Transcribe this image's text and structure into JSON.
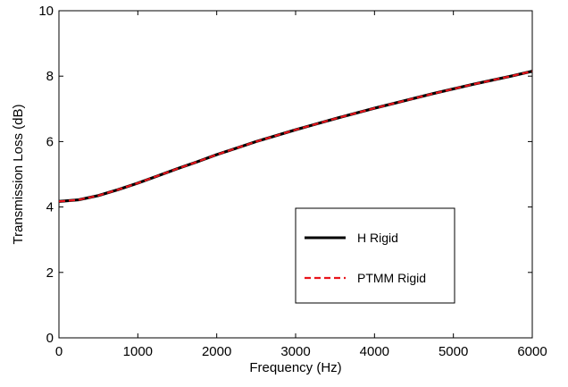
{
  "chart_data": {
    "type": "line",
    "title": "",
    "xlabel": "Frequency (Hz)",
    "ylabel": "Transmission Loss (dB)",
    "xlim": [
      0,
      6000
    ],
    "ylim": [
      0,
      10
    ],
    "xticks": [
      0,
      1000,
      2000,
      3000,
      4000,
      5000,
      6000
    ],
    "yticks": [
      0,
      2,
      4,
      6,
      8,
      10
    ],
    "xtick_labels": [
      "0",
      "1000",
      "2000",
      "3000",
      "4000",
      "5000",
      "6000"
    ],
    "ytick_labels": [
      "0",
      "2",
      "4",
      "6",
      "8",
      "10"
    ],
    "grid": false,
    "legend_position": "right",
    "series": [
      {
        "name": "H Rigid",
        "color": "#000000",
        "style": "solid",
        "x": [
          0,
          250,
          500,
          750,
          1000,
          1250,
          1500,
          1750,
          2000,
          2250,
          2500,
          2750,
          3000,
          3250,
          3500,
          3750,
          4000,
          4250,
          4500,
          4750,
          5000,
          5250,
          5500,
          5750,
          6000
        ],
        "y": [
          4.17,
          4.22,
          4.35,
          4.53,
          4.73,
          4.95,
          5.17,
          5.38,
          5.6,
          5.8,
          6.0,
          6.18,
          6.36,
          6.53,
          6.7,
          6.86,
          7.02,
          7.17,
          7.32,
          7.47,
          7.61,
          7.75,
          7.88,
          8.01,
          8.15
        ]
      },
      {
        "name": "PTMM Rigid",
        "color": "#e8141b",
        "style": "dashed",
        "x": [
          0,
          250,
          500,
          750,
          1000,
          1250,
          1500,
          1750,
          2000,
          2250,
          2500,
          2750,
          3000,
          3250,
          3500,
          3750,
          4000,
          4250,
          4500,
          4750,
          5000,
          5250,
          5500,
          5750,
          6000
        ],
        "y": [
          4.17,
          4.22,
          4.35,
          4.53,
          4.73,
          4.95,
          5.17,
          5.38,
          5.6,
          5.8,
          6.0,
          6.18,
          6.36,
          6.53,
          6.7,
          6.86,
          7.02,
          7.17,
          7.32,
          7.47,
          7.61,
          7.75,
          7.88,
          8.01,
          8.15
        ]
      }
    ]
  }
}
